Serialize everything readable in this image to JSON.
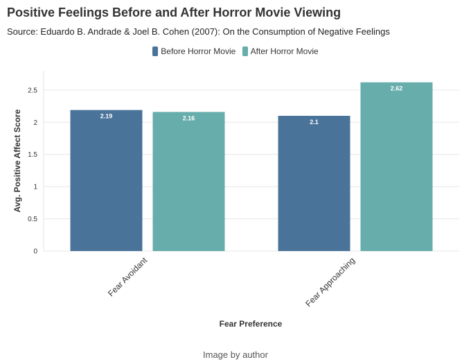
{
  "header": {
    "title": "Positive Feelings Before and After Horror Movie Viewing",
    "subtitle": "Source: Eduardo B. Andrade & Joel B. Cohen (2007): On the Consumption of Negative Feelings"
  },
  "caption": "Image by author",
  "colors": {
    "before": "#4a7399",
    "after": "#66adab",
    "grid": "#e6e6e6"
  },
  "chart_data": {
    "type": "bar",
    "title": "Positive Feelings Before and After Horror Movie Viewing",
    "xlabel": "Fear Preference",
    "ylabel": "Avg. Positive Affect Score",
    "categories": [
      "Fear Avoidant",
      "Fear Approaching"
    ],
    "series": [
      {
        "name": "Before Horror Movie",
        "values": [
          2.19,
          2.1
        ],
        "labels": [
          "2.19",
          "2.1"
        ]
      },
      {
        "name": "After Horror Movie",
        "values": [
          2.16,
          2.62
        ],
        "labels": [
          "2.16",
          "2.62"
        ]
      }
    ],
    "ylim": [
      0,
      2.8
    ],
    "yticks": [
      0,
      0.5,
      1,
      1.5,
      2,
      2.5
    ],
    "ytick_labels": [
      "0",
      "0.5",
      "1",
      "1.5",
      "2",
      "2.5"
    ],
    "legend_position": "top-center",
    "grid": true
  }
}
